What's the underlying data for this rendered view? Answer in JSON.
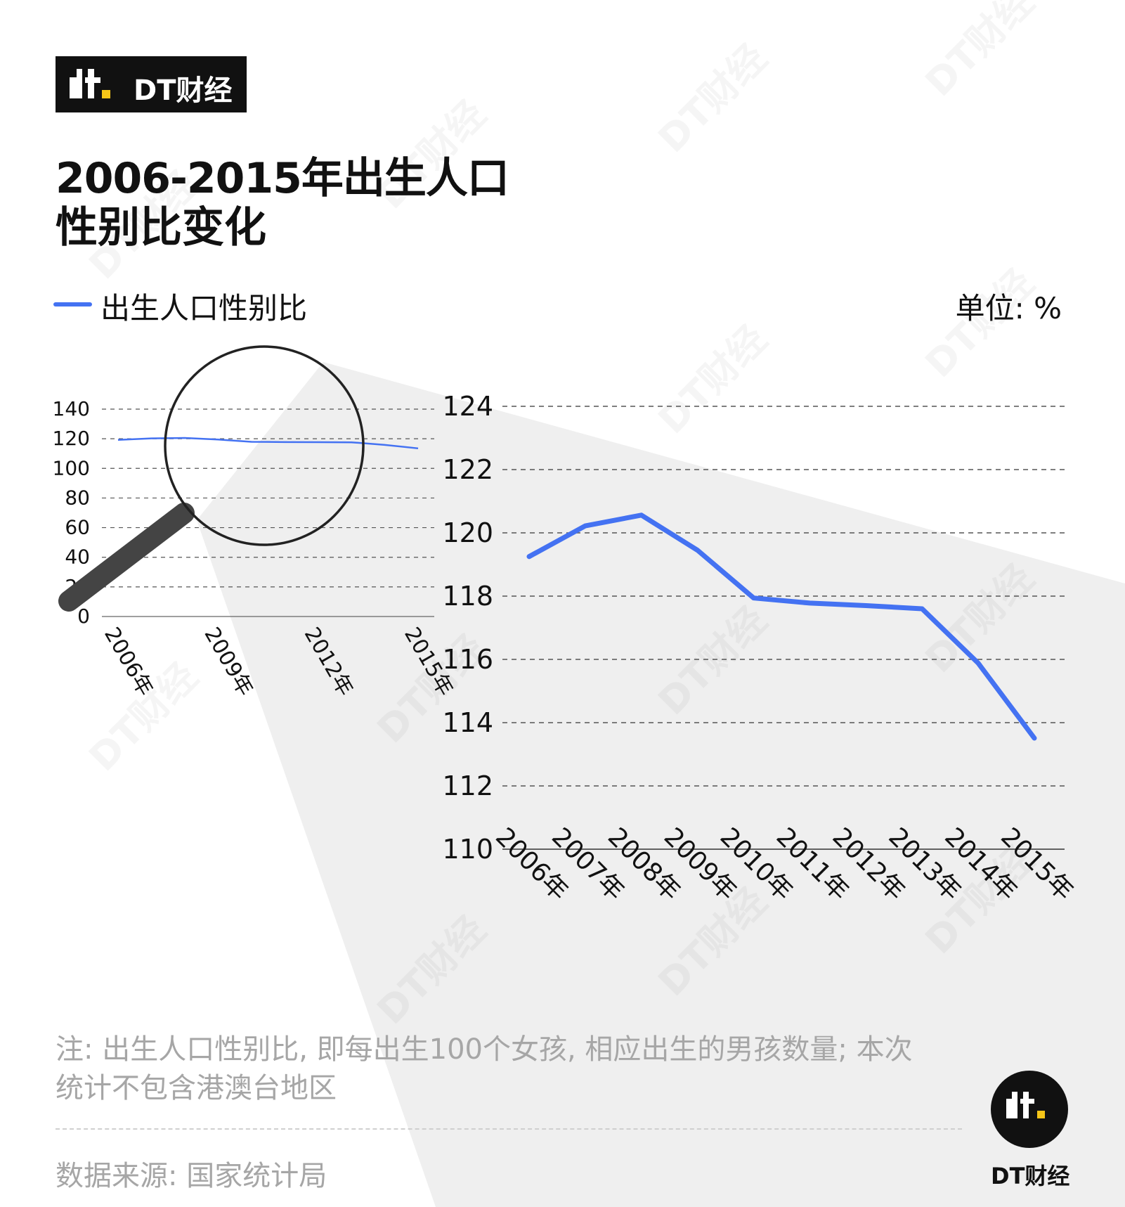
{
  "brand": {
    "name": "DT财经"
  },
  "title": {
    "line1": "2006-2015年出生人口",
    "line2": "性别比变化"
  },
  "legend": {
    "label": "出生人口性别比",
    "color": "#4472f2"
  },
  "unit": "单位: %",
  "note": {
    "line1": "注: 出生人口性别比, 即每出生100个女孩, 相应出生的男孩数量; 本次",
    "line2": "统计不包含港澳台地区"
  },
  "source": "数据来源: 国家统计局",
  "corner_brand": "DT财经",
  "watermark": "DT财经",
  "colors": {
    "line": "#4472f2",
    "beam": "#efefef",
    "handle": "#444444",
    "grid": "#555555",
    "faint_text": "#a6a6a6"
  },
  "chart_data": [
    {
      "type": "line",
      "role": "zoomed",
      "categories": [
        "2006年",
        "2007年",
        "2008年",
        "2009年",
        "2010年",
        "2011年",
        "2012年",
        "2013年",
        "2014年",
        "2015年"
      ],
      "series": [
        {
          "name": "出生人口性别比",
          "values": [
            119.25,
            120.22,
            120.56,
            119.45,
            117.94,
            117.78,
            117.7,
            117.6,
            115.88,
            113.51
          ]
        }
      ],
      "ylim": [
        110,
        124
      ],
      "yticks": [
        "110",
        "112",
        "114",
        "116",
        "118",
        "120",
        "122",
        "124"
      ],
      "grid": true
    },
    {
      "type": "line",
      "role": "overview",
      "categories": [
        "2006年",
        "2007年",
        "2008年",
        "2009年",
        "2010年",
        "2011年",
        "2012年",
        "2013年",
        "2014年",
        "2015年"
      ],
      "tick_labels": [
        "2006年",
        "2009年",
        "2012年",
        "2015年"
      ],
      "series": [
        {
          "name": "出生人口性别比",
          "values": [
            119.25,
            120.22,
            120.56,
            119.45,
            117.94,
            117.78,
            117.7,
            117.6,
            115.88,
            113.51
          ]
        }
      ],
      "ylim": [
        0,
        140
      ],
      "yticks": [
        "0",
        "20",
        "40",
        "60",
        "80",
        "100",
        "120",
        "140"
      ],
      "grid": true
    }
  ]
}
